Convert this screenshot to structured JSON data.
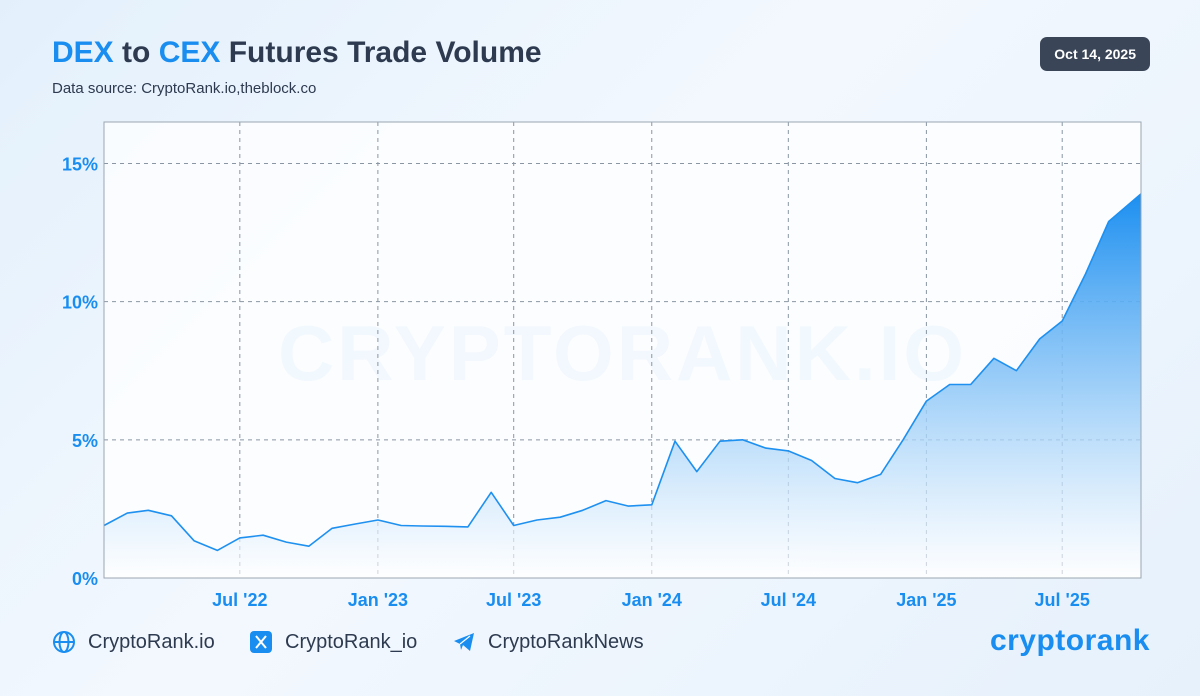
{
  "header": {
    "title_part1": "DEX",
    "title_part2": "to",
    "title_part3": "CEX",
    "title_part4": "Futures Trade Volume",
    "subtitle": "Data source: CryptoRank.io,theblock.co",
    "date": "Oct 14, 2025"
  },
  "watermark": "CRYPTORANK.IO",
  "footer": {
    "website": "CryptoRank.io",
    "twitter": "CryptoRank_io",
    "telegram": "CryptoRankNews",
    "logo": "cryptorank"
  },
  "colors": {
    "accent": "#1a8ef0",
    "title": "#2d3a4f",
    "line": "#1e90f0"
  },
  "chart_data": {
    "type": "area",
    "title": "DEX to CEX Futures Trade Volume",
    "xlabel": "",
    "ylabel": "",
    "x_range": [
      "2022-01-01",
      "2025-10-14"
    ],
    "ylim": [
      0,
      16.5
    ],
    "y_ticks": [
      0,
      5,
      10,
      15
    ],
    "y_tick_labels": [
      "0%",
      "5%",
      "10%",
      "15%"
    ],
    "x_tick_dates": [
      "2022-07-01",
      "2023-01-01",
      "2023-07-01",
      "2024-01-01",
      "2024-07-01",
      "2025-01-01",
      "2025-07-01"
    ],
    "x_tick_labels": [
      "Jul '22",
      "Jan '23",
      "Jul '23",
      "Jan '24",
      "Jul '24",
      "Jan '25",
      "Jul '25"
    ],
    "grid": true,
    "series": [
      {
        "x": [
          "2022-01-01",
          "2022-02-01",
          "2022-03-01",
          "2022-04-01",
          "2022-05-01",
          "2022-06-01",
          "2022-07-01",
          "2022-08-01",
          "2022-09-01",
          "2022-10-01",
          "2022-11-01",
          "2022-12-01",
          "2023-01-01",
          "2023-02-01",
          "2023-03-01",
          "2023-04-01",
          "2023-05-01",
          "2023-06-01",
          "2023-07-01",
          "2023-08-01",
          "2023-09-01",
          "2023-10-01",
          "2023-11-01",
          "2023-12-01",
          "2024-01-01",
          "2024-02-01",
          "2024-03-01",
          "2024-04-01",
          "2024-05-01",
          "2024-06-01",
          "2024-07-01",
          "2024-08-01",
          "2024-09-01",
          "2024-10-01",
          "2024-11-01",
          "2024-12-01",
          "2025-01-01",
          "2025-02-01",
          "2025-03-01",
          "2025-04-01",
          "2025-05-01",
          "2025-06-01",
          "2025-07-01",
          "2025-08-01",
          "2025-09-01",
          "2025-10-14"
        ],
        "values": [
          1.9,
          2.35,
          2.45,
          2.25,
          1.35,
          1.0,
          1.45,
          1.55,
          1.3,
          1.15,
          1.8,
          1.95,
          2.1,
          1.9,
          1.88,
          1.87,
          1.85,
          3.1,
          1.9,
          2.1,
          2.2,
          2.45,
          2.8,
          2.6,
          2.65,
          4.95,
          3.85,
          4.95,
          5.0,
          4.7,
          4.6,
          4.25,
          3.6,
          3.45,
          3.75,
          5.0,
          6.4,
          7.0,
          7.0,
          7.95,
          7.5,
          8.65,
          9.3,
          11.0,
          12.9,
          13.9
        ]
      }
    ]
  }
}
